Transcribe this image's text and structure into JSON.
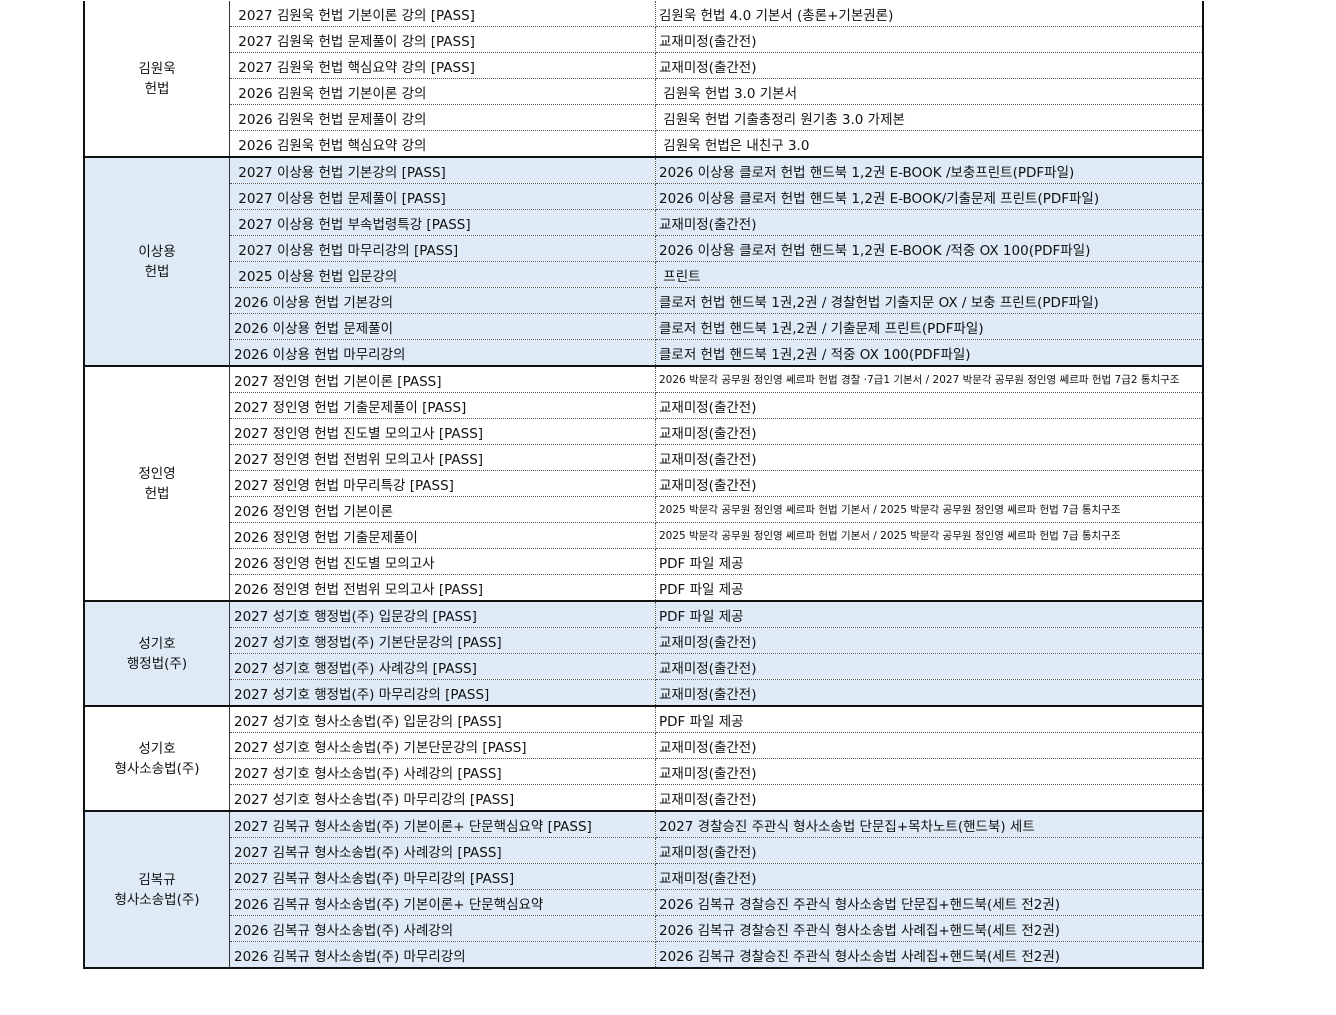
{
  "colors": {
    "group_highlight": "#deeaf6",
    "border": "#111111"
  },
  "groups": [
    {
      "label": [
        "김원욱",
        "헌법"
      ],
      "highlight": false,
      "rows": [
        [
          " 2027 김원욱 헌법 기본이론 강의 [PASS]",
          "김원욱 헌법 4.0 기본서 (총론+기본권론)"
        ],
        [
          " 2027 김원욱 헌법 문제풀이 강의 [PASS]",
          "교재미정(출간전)"
        ],
        [
          " 2027 김원욱 헌법 핵심요약 강의 [PASS]",
          "교재미정(출간전)"
        ],
        [
          " 2026 김원욱 헌법 기본이론 강의",
          " 김원욱 헌법 3.0 기본서"
        ],
        [
          " 2026 김원욱 헌법 문제풀이 강의",
          " 김원욱 헌법 기출총정리 원기총 3.0 가제본"
        ],
        [
          " 2026 김원욱 헌법 핵심요약 강의",
          " 김원욱 헌법은 내친구 3.0"
        ]
      ]
    },
    {
      "label": [
        "이상용",
        "헌법"
      ],
      "highlight": true,
      "rows": [
        [
          " 2027 이상용 헌법 기본강의 [PASS]",
          "2026 이상용 클로저 헌법 핸드북 1,2권 E-BOOK /보충프린트(PDF파일)"
        ],
        [
          " 2027 이상용 헌법 문제풀이 [PASS]",
          "2026 이상용 클로저 헌법 핸드북 1,2권 E-BOOK/기출문제 프린트(PDF파일)"
        ],
        [
          " 2027 이상용 헌법 부속법령특강 [PASS]",
          "교재미정(출간전)"
        ],
        [
          " 2027 이상용 헌법 마무리강의 [PASS]",
          "2026 이상용 클로저 헌법 핸드북 1,2권 E-BOOK /적중 OX 100(PDF파일)"
        ],
        [
          " 2025 이상용 헌법 입문강의",
          " 프린트"
        ],
        [
          "2026 이상용 헌법 기본강의",
          "클로저 헌법 핸드북 1권,2권 / 경찰헌법 기출지문 OX / 보충 프린트(PDF파일)"
        ],
        [
          "2026 이상용 헌법 문제풀이",
          "클로저 헌법 핸드북 1권,2권 / 기출문제 프린트(PDF파일)"
        ],
        [
          "2026 이상용 헌법 마무리강의",
          "클로저 헌법 핸드북 1권,2권 / 적중 OX 100(PDF파일)"
        ]
      ]
    },
    {
      "label": [
        "정인영",
        "헌법"
      ],
      "highlight": false,
      "rows": [
        [
          "2027 정인영 헌법 기본이론 [PASS]",
          "2026 박문각 공무원 정인영 쎄르파 헌법 경찰 ·7급1 기본서 / 2027 박문각 공무원 정인영 쎄르파 헌법 7급2 통치구조"
        ],
        [
          "2027 정인영 헌법 기출문제풀이 [PASS]",
          "교재미정(출간전)"
        ],
        [
          "2027 정인영 헌법 진도별 모의고사 [PASS]",
          "교재미정(출간전)"
        ],
        [
          "2027 정인영 헌법 전범위 모의고사 [PASS]",
          "교재미정(출간전)"
        ],
        [
          "2027 정인영 헌법 마무리특강 [PASS]",
          "교재미정(출간전)"
        ],
        [
          "2026 정인영 헌법 기본이론",
          "2025 박문각 공무원 정인영 쎄르파 헌법 기본서 / 2025 박문각 공무원 정인영 쎄르파 헌법 7급 통치구조"
        ],
        [
          "2026 정인영 헌법 기출문제풀이",
          "2025 박문각 공무원 정인영 쎄르파 헌법 기본서 / 2025 박문각 공무원 정인영 쎄르파 헌법 7급 통치구조"
        ],
        [
          "2026 정인영 헌법 진도별 모의고사",
          "PDF 파일 제공"
        ],
        [
          "2026 정인영 헌법 전범위 모의고사 [PASS]",
          "PDF 파일 제공"
        ]
      ]
    },
    {
      "label": [
        "성기호",
        "행정법(주)"
      ],
      "highlight": true,
      "rows": [
        [
          "2027 성기호 행정법(주) 입문강의 [PASS]",
          "PDF 파일 제공"
        ],
        [
          "2027 성기호 행정법(주) 기본단문강의 [PASS]",
          "교재미정(출간전)"
        ],
        [
          "2027 성기호 행정법(주) 사례강의 [PASS]",
          "교재미정(출간전)"
        ],
        [
          "2027 성기호 행정법(주) 마무리강의 [PASS]",
          "교재미정(출간전)"
        ]
      ]
    },
    {
      "label": [
        "성기호",
        "형사소송법(주)"
      ],
      "highlight": false,
      "rows": [
        [
          "2027 성기호 형사소송법(주) 입문강의 [PASS]",
          "PDF 파일 제공"
        ],
        [
          "2027 성기호 형사소송법(주) 기본단문강의 [PASS]",
          "교재미정(출간전)"
        ],
        [
          "2027 성기호 형사소송법(주) 사례강의 [PASS]",
          "교재미정(출간전)"
        ],
        [
          "2027 성기호 형사소송법(주) 마무리강의 [PASS]",
          "교재미정(출간전)"
        ]
      ]
    },
    {
      "label": [
        "김복규",
        "형사소송법(주)"
      ],
      "highlight": true,
      "rows": [
        [
          "2027 김복규 형사소송법(주) 기본이론+ 단문핵심요약 [PASS]",
          "2027 경찰승진 주관식 형사소송법 단문집+목차노트(핸드북) 세트"
        ],
        [
          "2027 김복규 형사소송법(주) 사례강의 [PASS]",
          "교재미정(출간전)"
        ],
        [
          "2027 김복규 형사소송법(주) 마무리강의 [PASS]",
          "교재미정(출간전)"
        ],
        [
          "2026 김복규 형사소송법(주) 기본이론+ 단문핵심요약",
          "2026 김복규 경찰승진 주관식 형사소송법 단문집+핸드북(세트 전2권)"
        ],
        [
          "2026 김복규 형사소송법(주) 사례강의",
          "2026 김복규 경찰승진 주관식 형사소송법 사례집+핸드북(세트 전2권)"
        ],
        [
          "2026 김복규 형사소송법(주) 마무리강의",
          "2026 김복규 경찰승진 주관식 형사소송법 사례집+핸드북(세트 전2권)"
        ]
      ]
    }
  ]
}
